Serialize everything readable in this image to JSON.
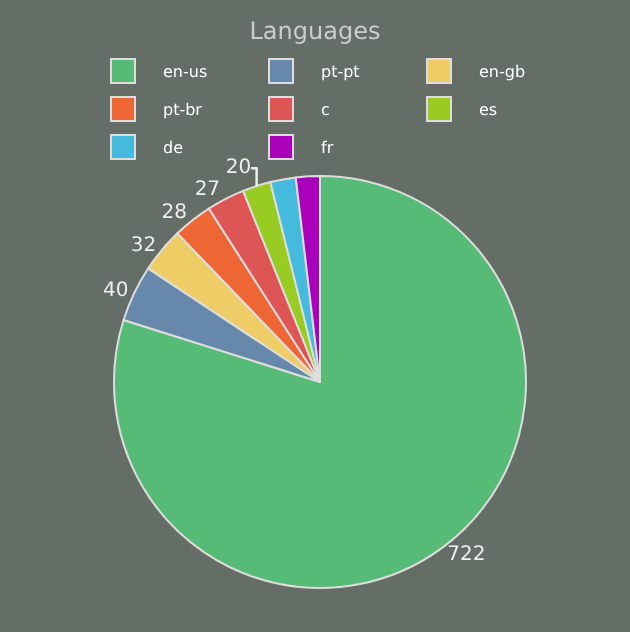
{
  "chart_data": {
    "type": "pie",
    "title": "Languages",
    "categories": [
      "en-us",
      "pt-pt",
      "en-gb",
      "pt-br",
      "c",
      "es",
      "de",
      "fr"
    ],
    "values": [
      722,
      40,
      32,
      28,
      27,
      20,
      18,
      17
    ],
    "value_labels": [
      "722",
      "40",
      "32",
      "28",
      "27",
      "20",
      null,
      null
    ],
    "colors": [
      "#55bb77",
      "#6688aa",
      "#eecc66",
      "#ee6633",
      "#dd5555",
      "#99cc22",
      "#44bbdd",
      "#aa00bb"
    ],
    "legend": "top"
  }
}
